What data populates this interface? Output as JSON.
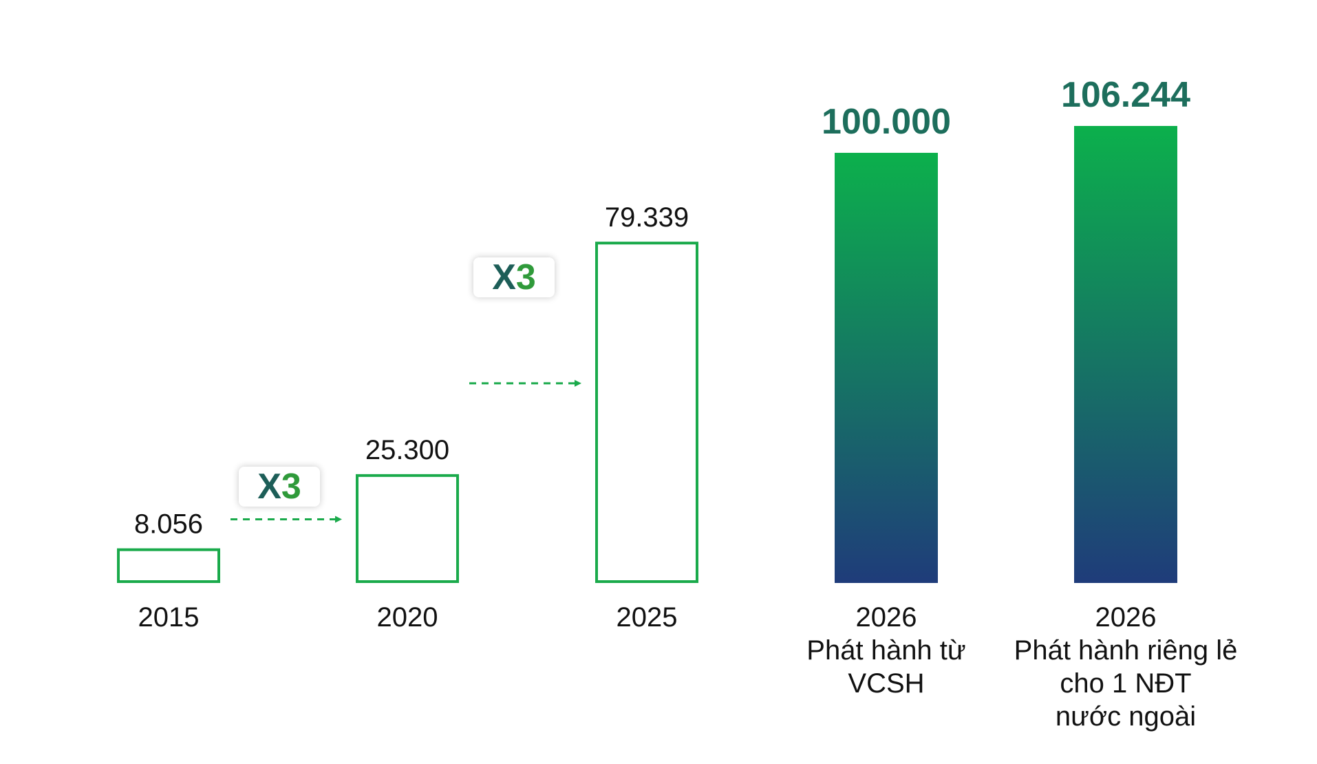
{
  "chart_data": {
    "type": "bar",
    "categories": [
      "2015",
      "2020",
      "2025",
      "2026\nPhát hành từ\nVCSH",
      "2026\nPhát hành riêng lẻ\ncho 1 NĐT\nnước ngoài"
    ],
    "values": [
      8056,
      25300,
      79339,
      100000,
      106244
    ],
    "value_labels": [
      "8.056",
      "25.300",
      "79.339",
      "100.000",
      "106.244"
    ],
    "bar_styles": [
      "outline",
      "outline",
      "outline",
      "gradient",
      "gradient"
    ],
    "title": "",
    "xlabel": "",
    "ylabel": "",
    "ylim": [
      0,
      106244
    ],
    "grid": false,
    "legend": "none"
  },
  "annotations": [
    {
      "from": "2015",
      "to": "2020",
      "multiplier_prefix": "X",
      "multiplier_value": "3"
    },
    {
      "from": "2020",
      "to": "2025",
      "multiplier_prefix": "X",
      "multiplier_value": "3"
    }
  ],
  "colors": {
    "outline_green": "#1aaa4b",
    "gradient_top": "#0cb04c",
    "gradient_bottom": "#1f3c7a",
    "big_label": "#1d6e5c",
    "arrow": "#1aaa4b",
    "text": "#111111"
  }
}
